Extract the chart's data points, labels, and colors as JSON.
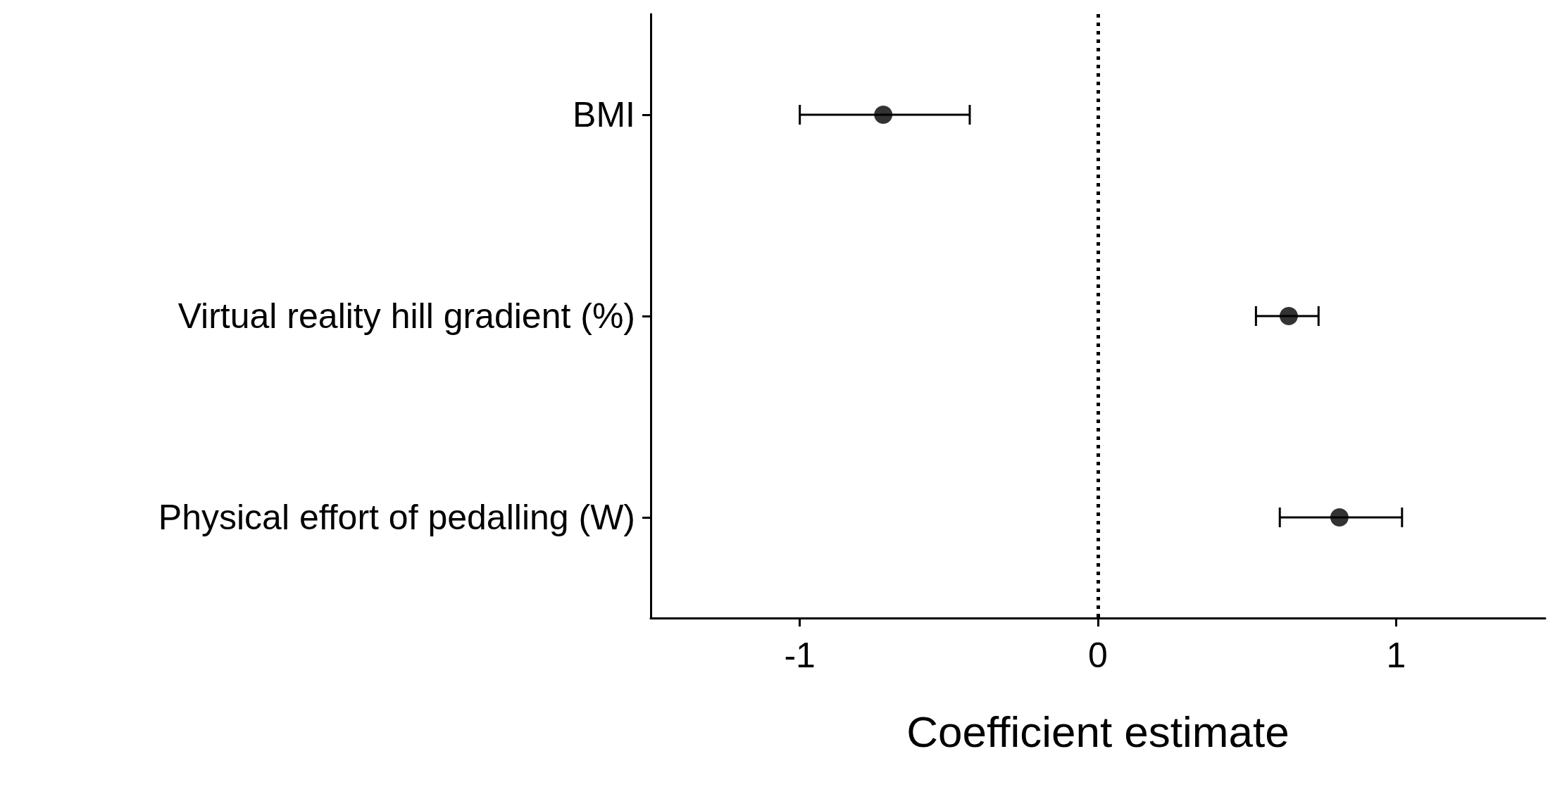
{
  "chart_data": {
    "type": "scatter",
    "orientation": "horizontal",
    "xlabel": "Coefficient estimate",
    "categories": [
      "BMI",
      "Virtual reality hill gradient (%)",
      "Physical effort of pedalling (W)"
    ],
    "values": [
      -0.72,
      0.64,
      0.81
    ],
    "errors": [
      [
        -1.0,
        -0.43
      ],
      [
        0.53,
        0.74
      ],
      [
        0.61,
        1.02
      ]
    ],
    "color": "#000000",
    "marker": "circle",
    "grid": false,
    "xlim": [
      -1.5,
      1.5
    ],
    "xticks": [
      -1,
      0,
      1
    ],
    "ref_lines": [
      {
        "axis": "x",
        "value": 0,
        "line_style": "dotted",
        "color": "#000000"
      }
    ]
  }
}
